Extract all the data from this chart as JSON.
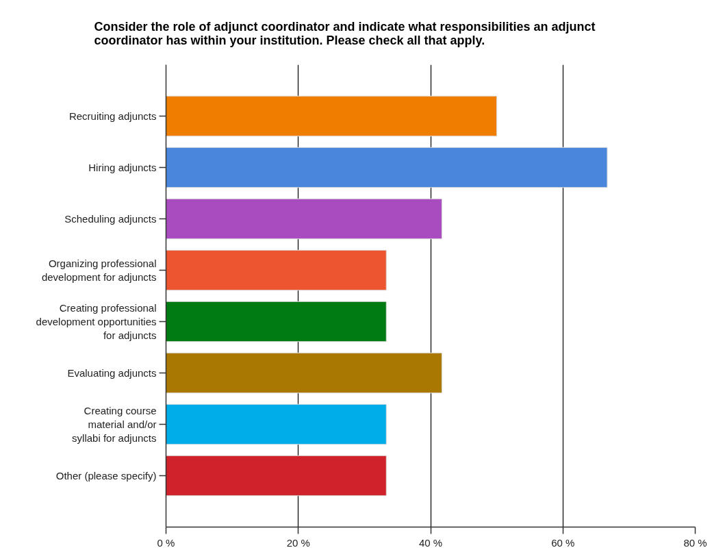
{
  "chart_data": {
    "type": "bar",
    "orientation": "horizontal",
    "title": "Consider the role of adjunct coordinator and indicate what responsibilities an adjunct\ncoordinator has within your institution. Please check all that apply.",
    "categories": [
      "Recruiting adjuncts",
      "Hiring adjuncts",
      "Scheduling adjuncts",
      "Organizing professional\ndevelopment for adjuncts",
      "Creating professional\ndevelopment opportunities\nfor adjuncts",
      "Evaluating adjuncts",
      "Creating course\nmaterial and/or\nsyllabi for adjuncts",
      "Other (please specify)"
    ],
    "values": [
      50,
      66.7,
      41.7,
      33.3,
      33.3,
      41.7,
      33.3,
      33.3
    ],
    "colors": [
      "#ee7d00",
      "#4a86dc",
      "#a94cc0",
      "#ec5530",
      "#007a12",
      "#a87800",
      "#00ade8",
      "#d0222a"
    ],
    "xlim": [
      0,
      80
    ],
    "xticks": [
      {
        "value": 0,
        "label": "0 %"
      },
      {
        "value": 20,
        "label": "20 %"
      },
      {
        "value": 40,
        "label": "40 %"
      },
      {
        "value": 60,
        "label": "60 %"
      },
      {
        "value": 80,
        "label": "80 %"
      }
    ],
    "grid": "x"
  }
}
